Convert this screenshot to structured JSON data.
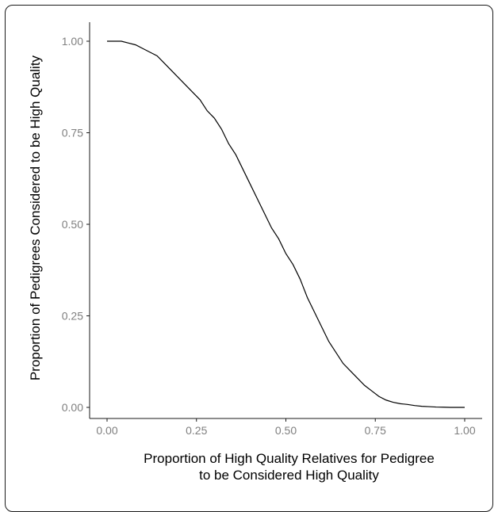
{
  "chart_data": {
    "type": "line",
    "title": "",
    "xlabel_lines": [
      "Proportion of High Quality Relatives for Pedigree",
      "to be Considered High Quality"
    ],
    "ylabel": "Proportion of Pedigrees Considered to be High Quality",
    "xlim": [
      0,
      1
    ],
    "ylim": [
      0,
      1
    ],
    "x_ticks": [
      "0.00",
      "0.25",
      "0.50",
      "0.75",
      "1.00"
    ],
    "y_ticks": [
      "0.00",
      "0.25",
      "0.50",
      "0.75",
      "1.00"
    ],
    "grid": false,
    "legend": "none",
    "line_color": "#000000",
    "series": [
      {
        "x": [
          0.0,
          0.02,
          0.04,
          0.06,
          0.08,
          0.1,
          0.12,
          0.14,
          0.16,
          0.18,
          0.2,
          0.22,
          0.24,
          0.26,
          0.28,
          0.3,
          0.32,
          0.34,
          0.36,
          0.38,
          0.4,
          0.42,
          0.44,
          0.46,
          0.48,
          0.5,
          0.52,
          0.54,
          0.56,
          0.58,
          0.6,
          0.62,
          0.64,
          0.66,
          0.68,
          0.7,
          0.72,
          0.74,
          0.76,
          0.78,
          0.8,
          0.82,
          0.84,
          0.86,
          0.88,
          0.9,
          0.92,
          0.94,
          0.96,
          0.98,
          1.0
        ],
        "y": [
          1.0,
          1.0,
          1.0,
          0.995,
          0.99,
          0.98,
          0.97,
          0.96,
          0.94,
          0.92,
          0.9,
          0.88,
          0.86,
          0.84,
          0.81,
          0.79,
          0.76,
          0.72,
          0.69,
          0.65,
          0.61,
          0.57,
          0.53,
          0.49,
          0.46,
          0.42,
          0.39,
          0.35,
          0.3,
          0.26,
          0.22,
          0.18,
          0.15,
          0.12,
          0.1,
          0.08,
          0.06,
          0.045,
          0.03,
          0.02,
          0.014,
          0.01,
          0.008,
          0.005,
          0.003,
          0.002,
          0.001,
          0.0005,
          0.0,
          0.0,
          0.0
        ]
      }
    ]
  }
}
